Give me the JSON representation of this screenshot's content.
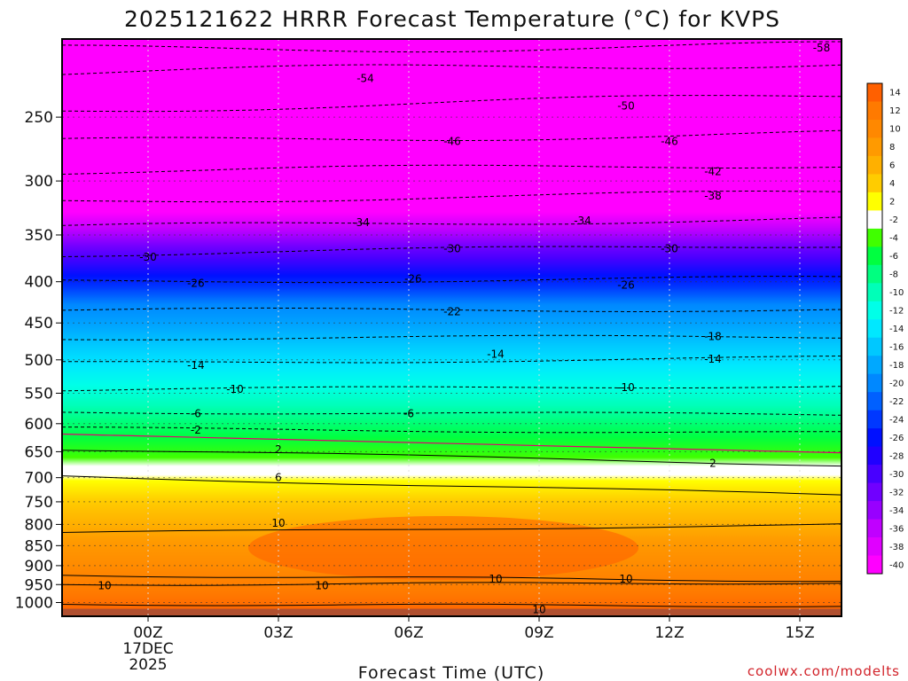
{
  "chart_data": {
    "type": "heatmap",
    "title": "2025121622 HRRR Forecast Temperature (°C) for KVPS",
    "xlabel": "Forecast Time (UTC)",
    "x_ticks": [
      "00Z",
      "03Z",
      "06Z",
      "09Z",
      "12Z",
      "15Z"
    ],
    "x_date_label": [
      "17DEC",
      "2025"
    ],
    "y_ticks": [
      250,
      300,
      350,
      400,
      450,
      500,
      550,
      600,
      650,
      700,
      750,
      800,
      850,
      900,
      950,
      1000
    ],
    "y_range_hPa": [
      1040,
      200
    ],
    "y_scale": "log",
    "colorbar": {
      "labels": [
        "14",
        "12",
        "10",
        "8",
        "6",
        "4",
        "2",
        "-2",
        "-4",
        "-6",
        "-8",
        "-10",
        "-12",
        "-14",
        "-16",
        "-18",
        "-20",
        "-22",
        "-24",
        "-26",
        "-28",
        "-30",
        "-32",
        "-34",
        "-36",
        "-38",
        "-40"
      ],
      "colors": [
        "#ff6000",
        "#ff7a00",
        "#ff8800",
        "#ff9a00",
        "#ffb000",
        "#ffcc00",
        "#ffff00",
        "#ffffff",
        "#40ff00",
        "#00ff40",
        "#00ff80",
        "#00ffb8",
        "#00ffe8",
        "#00e8ff",
        "#00c8ff",
        "#00a8ff",
        "#0088ff",
        "#0060ff",
        "#0038ff",
        "#0010ff",
        "#2000ff",
        "#4800ff",
        "#7000ff",
        "#9800ff",
        "#c000ff",
        "#e000ff",
        "#ff00ff"
      ]
    },
    "contour_labels": [
      {
        "text": "-58",
        "t": 15.5,
        "p": 205
      },
      {
        "text": "-54",
        "t": 5.0,
        "p": 224
      },
      {
        "text": "-50",
        "t": 11.0,
        "p": 242
      },
      {
        "text": "-46",
        "t": 7.0,
        "p": 268
      },
      {
        "text": "-46",
        "t": 12.0,
        "p": 268
      },
      {
        "text": "-42",
        "t": 13.0,
        "p": 292
      },
      {
        "text": "-38",
        "t": 13.0,
        "p": 313
      },
      {
        "text": "-34",
        "t": 4.9,
        "p": 338
      },
      {
        "text": "-34",
        "t": 10.0,
        "p": 336
      },
      {
        "text": "-30",
        "t": 0.0,
        "p": 373
      },
      {
        "text": "-30",
        "t": 7.0,
        "p": 364
      },
      {
        "text": "-30",
        "t": 12.0,
        "p": 364
      },
      {
        "text": "-26",
        "t": 1.1,
        "p": 402
      },
      {
        "text": "-26",
        "t": 6.1,
        "p": 397
      },
      {
        "text": "-26",
        "t": 11.0,
        "p": 404
      },
      {
        "text": "-22",
        "t": 7.0,
        "p": 436
      },
      {
        "text": "-18",
        "t": 13.0,
        "p": 468
      },
      {
        "text": "-14",
        "t": 1.1,
        "p": 508
      },
      {
        "text": "-14",
        "t": 8.0,
        "p": 492
      },
      {
        "text": "-14",
        "t": 13.0,
        "p": 499
      },
      {
        "text": "-10",
        "t": 2.0,
        "p": 544
      },
      {
        "text": "-10",
        "t": 11.0,
        "p": 541
      },
      {
        "text": "-6",
        "t": 1.1,
        "p": 583
      },
      {
        "text": "-6",
        "t": 6.0,
        "p": 583
      },
      {
        "text": "-2",
        "t": 1.1,
        "p": 611
      },
      {
        "text": "2",
        "t": 3.0,
        "p": 646
      },
      {
        "text": "2",
        "t": 13.0,
        "p": 672
      },
      {
        "text": "6",
        "t": 3.0,
        "p": 700
      },
      {
        "text": "10",
        "t": 3.0,
        "p": 797
      },
      {
        "text": "10",
        "t": -1.0,
        "p": 953
      },
      {
        "text": "10",
        "t": 4.0,
        "p": 953
      },
      {
        "text": "10",
        "t": 8.0,
        "p": 935
      },
      {
        "text": "10",
        "t": 11.0,
        "p": 935
      },
      {
        "text": "10",
        "t": 9.0,
        "p": 1020
      }
    ]
  },
  "credit": "coolwx.com/modelts"
}
